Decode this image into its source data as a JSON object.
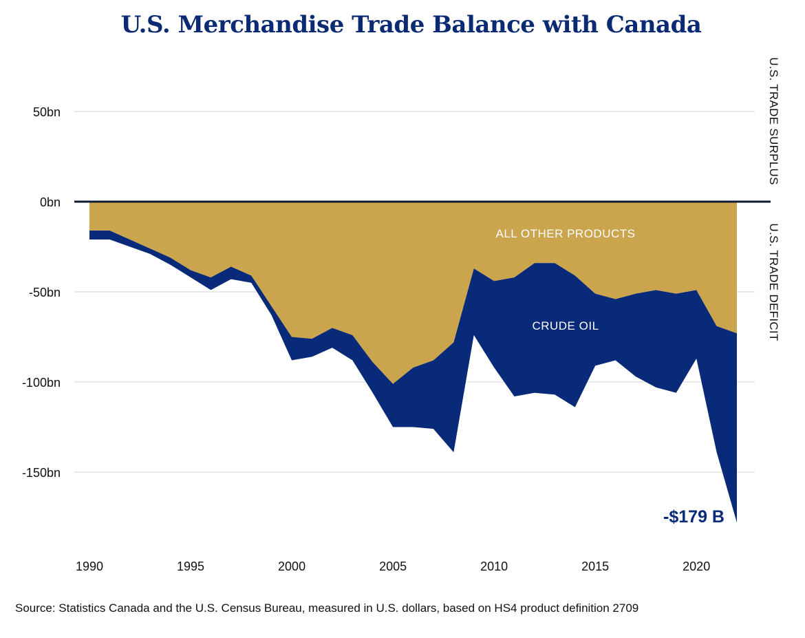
{
  "chart_data": {
    "type": "area",
    "title": "U.S. Merchandise Trade Balance with Canada",
    "ylim": [
      -185,
      75
    ],
    "xlim": [
      1989.5,
      2023
    ],
    "y_ticks": [
      50,
      0,
      -50,
      -100,
      -150
    ],
    "y_tick_labels": [
      "50bn",
      "0bn",
      "-50bn",
      "-100bn",
      "-150bn"
    ],
    "x_ticks": [
      1990,
      1995,
      2000,
      2005,
      2010,
      2015,
      2020
    ],
    "x_tick_labels": [
      "1990",
      "1995",
      "2000",
      "2005",
      "2010",
      "2015",
      "2020"
    ],
    "grid": true,
    "x": [
      1990,
      1991,
      1992,
      1993,
      1994,
      1995,
      1996,
      1997,
      1998,
      1999,
      2000,
      2001,
      2002,
      2003,
      2004,
      2005,
      2006,
      2007,
      2008,
      2009,
      2010,
      2011,
      2012,
      2013,
      2014,
      2015,
      2016,
      2017,
      2018,
      2019,
      2020,
      2021,
      2022
    ],
    "series": [
      {
        "name": "ALL OTHER PRODUCTS",
        "color": "#caa54e",
        "values": [
          -16,
          -16,
          -21,
          -26,
          -31,
          -38,
          -42,
          -36,
          -41,
          -58,
          -75,
          -76,
          -70,
          -74,
          -89,
          -101,
          -92,
          -88,
          -78,
          -37,
          -44,
          -42,
          -34,
          -34,
          -41,
          -51,
          -54,
          -51,
          -49,
          -51,
          -49,
          -69,
          -73
        ]
      },
      {
        "name": "CRUDE OIL",
        "color": "#082a78",
        "values": [
          -5,
          -5,
          -4,
          -3,
          -4,
          -4,
          -7,
          -7,
          -4,
          -5,
          -13,
          -10,
          -11,
          -14,
          -17,
          -24,
          -33,
          -38,
          -61,
          -37,
          -48,
          -66,
          -72,
          -73,
          -73,
          -40,
          -34,
          -46,
          -54,
          -55,
          -38,
          -70,
          -105
        ]
      }
    ],
    "axis_labels": {
      "surplus": "U.S. TRADE SURPLUS",
      "deficit": "U.S. TRADE DEFICIT"
    },
    "annotations": {
      "other_products": "ALL OTHER PRODUCTS",
      "crude_oil": "CRUDE OIL",
      "total_2022": "-$179 B"
    },
    "source": "Source: Statistics Canada and the U.S. Census Bureau, measured in U.S. dollars, based on HS4 product definition 2709"
  }
}
